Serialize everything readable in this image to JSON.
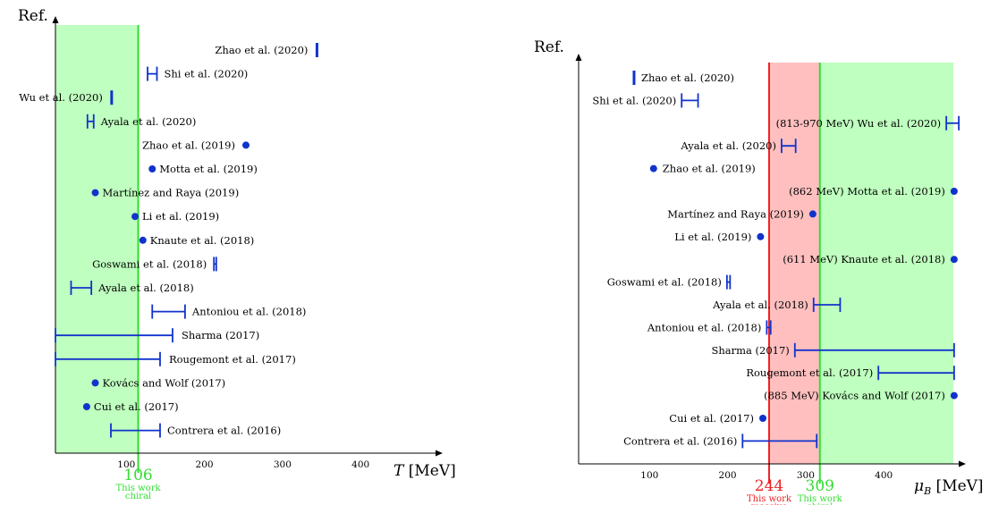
{
  "chart_data": [
    {
      "type": "scatter",
      "panel": "left",
      "ylabel": "Ref.",
      "xlabel": "T [MeV]",
      "xlim": [
        0,
        480
      ],
      "xticks": [
        100,
        200,
        300,
        400
      ],
      "bands": [
        {
          "from": 0,
          "to": 106,
          "color": "#bfffbf"
        }
      ],
      "vlines": [
        {
          "x": 106,
          "color": "#33dd33",
          "value_label": "106",
          "note1": "This work",
          "note2": "chiral"
        }
      ],
      "series": [
        {
          "label": "Zhao et al. (2020)",
          "kind": "bar",
          "x": 335,
          "xmin": 333,
          "xmax": 337
        },
        {
          "label": "Shi et al. (2020)",
          "kind": "interval",
          "xmin": 118,
          "xmax": 130
        },
        {
          "label": "Wu et al. (2020)",
          "kind": "bar",
          "x": 72,
          "xmin": 70,
          "xmax": 74
        },
        {
          "label": "Ayala et al. (2020)",
          "kind": "interval",
          "xmin": 41,
          "xmax": 49
        },
        {
          "label": "Zhao et al. (2019)",
          "kind": "point",
          "x": 244
        },
        {
          "label": "Motta et al. (2019)",
          "kind": "point",
          "x": 124
        },
        {
          "label": "Martínez and Raya (2019)",
          "kind": "point",
          "x": 51
        },
        {
          "label": "Li et al. (2019)",
          "kind": "point",
          "x": 102
        },
        {
          "label": "Knaute et al. (2018)",
          "kind": "point",
          "x": 112
        },
        {
          "label": "Goswami et al. (2018)",
          "kind": "interval",
          "xmin": 203,
          "xmax": 206
        },
        {
          "label": "Ayala et al. (2018)",
          "kind": "interval",
          "xmin": 20,
          "xmax": 46
        },
        {
          "label": "Antoniou et al. (2018)",
          "kind": "interval",
          "xmin": 124,
          "xmax": 166
        },
        {
          "label": "Sharma (2017)",
          "kind": "interval",
          "xmin": 0,
          "xmax": 150
        },
        {
          "label": "Rougemont et al. (2017)",
          "kind": "interval",
          "xmin": 0,
          "xmax": 134
        },
        {
          "label": "Kovács and Wolf (2017)",
          "kind": "point",
          "x": 51
        },
        {
          "label": "Cui et al. (2017)",
          "kind": "point",
          "x": 40
        },
        {
          "label": "Contrera et al. (2016)",
          "kind": "interval",
          "xmin": 71,
          "xmax": 134
        }
      ]
    },
    {
      "type": "scatter",
      "panel": "right",
      "ylabel": "Ref.",
      "xlabel": "μ_B [MeV]",
      "xlim": [
        0,
        480
      ],
      "xticks": [
        100,
        200,
        300,
        400
      ],
      "bands": [
        {
          "from": 244,
          "to": 309,
          "color": "#ffbfbf"
        },
        {
          "from": 309,
          "to": 480,
          "color": "#bfffbf"
        }
      ],
      "vlines": [
        {
          "x": 244,
          "color": "#ee2222",
          "value_label": "244",
          "note1": "This work",
          "note2": "massive"
        },
        {
          "x": 309,
          "color": "#33dd33",
          "value_label": "309",
          "note1": "This work",
          "note2": "chiral"
        }
      ],
      "series": [
        {
          "label": "Zhao et al. (2020)",
          "kind": "bar",
          "x": 71,
          "xmin": 69,
          "xmax": 73
        },
        {
          "label": "Shi et al. (2020)",
          "kind": "interval",
          "xmin": 132,
          "xmax": 153
        },
        {
          "label": "(813-970 MeV) Wu et al. (2020)",
          "kind": "interval",
          "xmin": 471,
          "xmax": 487
        },
        {
          "label": "Ayala et al. (2020)",
          "kind": "interval",
          "xmin": 260,
          "xmax": 278
        },
        {
          "label": "Zhao et al. (2019)",
          "kind": "point",
          "x": 96
        },
        {
          "label": "(862 MeV) Motta et al. (2019)",
          "kind": "point",
          "x": 481
        },
        {
          "label": "Martínez and Raya (2019)",
          "kind": "point",
          "x": 300
        },
        {
          "label": "Li et al. (2019)",
          "kind": "point",
          "x": 233
        },
        {
          "label": "(611 MeV) Knaute et al. (2018)",
          "kind": "point",
          "x": 481
        },
        {
          "label": "Goswami et al. (2018)",
          "kind": "interval",
          "xmin": 190,
          "xmax": 194
        },
        {
          "label": "Ayala et al. (2018)",
          "kind": "interval",
          "xmin": 301,
          "xmax": 335
        },
        {
          "label": "Antoniou et al. (2018)",
          "kind": "interval",
          "xmin": 241,
          "xmax": 246
        },
        {
          "label": "Sharma (2017)",
          "kind": "interval",
          "xmin": 277,
          "xmax": 481
        },
        {
          "label": "Rougemont et al. (2017)",
          "kind": "interval",
          "xmin": 384,
          "xmax": 481
        },
        {
          "label": "(885 MeV) Kovács and Wolf (2017)",
          "kind": "point",
          "x": 481
        },
        {
          "label": "Cui et al. (2017)",
          "kind": "point",
          "x": 236
        },
        {
          "label": "Contrera et al. (2016)",
          "kind": "interval",
          "xmin": 210,
          "xmax": 305
        }
      ]
    }
  ]
}
